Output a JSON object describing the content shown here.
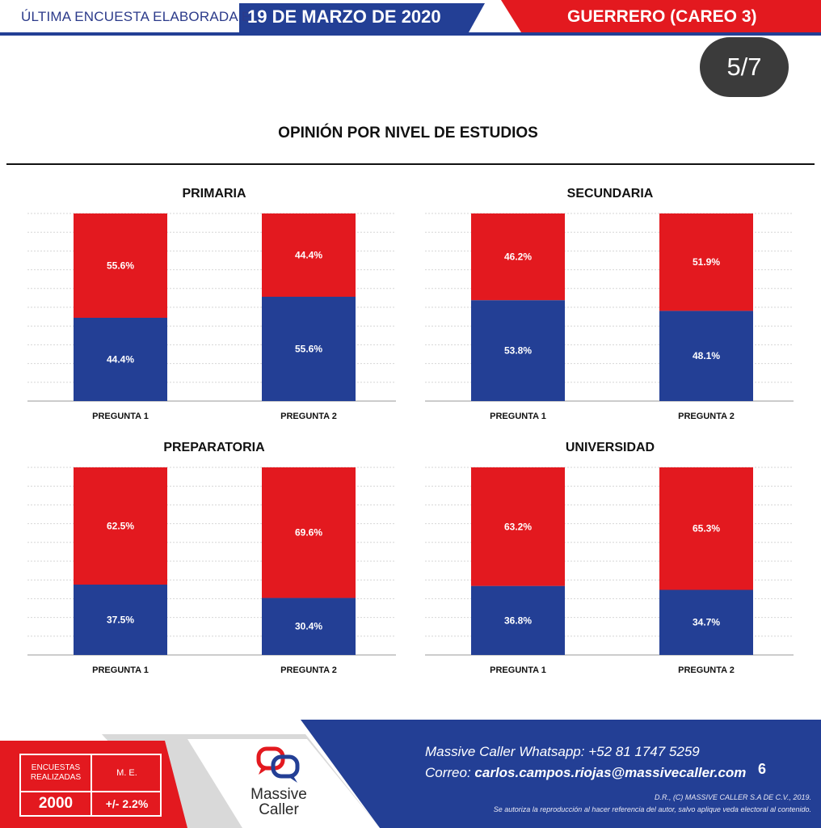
{
  "colors": {
    "red": "#e3191f",
    "blue": "#233f95",
    "gray": "#3b3b3b"
  },
  "header": {
    "prefix": "ÚLTIMA ENCUESTA ELABORADA EL",
    "date": "19 DE MARZO DE 2020",
    "region": "GUERRERO (CAREO 3)"
  },
  "page_badge": "5/7",
  "title": "OPINIÓN POR NIVEL DE ESTUDIOS",
  "chart_data": [
    {
      "type": "bar",
      "stacked": true,
      "title": "PRIMARIA",
      "categories": [
        "PREGUNTA 1",
        "PREGUNTA 2"
      ],
      "series": [
        {
          "color": "#233f95",
          "values": [
            44.4,
            55.6
          ],
          "labels": [
            "44.4%",
            "55.6%"
          ]
        },
        {
          "color": "#e3191f",
          "values": [
            55.6,
            44.4
          ],
          "labels": [
            "55.6%",
            "44.4%"
          ]
        }
      ],
      "ylim": [
        0,
        100
      ]
    },
    {
      "type": "bar",
      "stacked": true,
      "title": "SECUNDARIA",
      "categories": [
        "PREGUNTA 1",
        "PREGUNTA 2"
      ],
      "series": [
        {
          "color": "#233f95",
          "values": [
            53.8,
            48.1
          ],
          "labels": [
            "53.8%",
            "48.1%"
          ]
        },
        {
          "color": "#e3191f",
          "values": [
            46.2,
            51.9
          ],
          "labels": [
            "46.2%",
            "51.9%"
          ]
        }
      ],
      "ylim": [
        0,
        100
      ]
    },
    {
      "type": "bar",
      "stacked": true,
      "title": "PREPARATORIA",
      "categories": [
        "PREGUNTA 1",
        "PREGUNTA 2"
      ],
      "series": [
        {
          "color": "#233f95",
          "values": [
            37.5,
            30.4
          ],
          "labels": [
            "37.5%",
            "30.4%"
          ]
        },
        {
          "color": "#e3191f",
          "values": [
            62.5,
            69.6
          ],
          "labels": [
            "62.5%",
            "69.6%"
          ]
        }
      ],
      "ylim": [
        0,
        100
      ]
    },
    {
      "type": "bar",
      "stacked": true,
      "title": "UNIVERSIDAD",
      "categories": [
        "PREGUNTA 1",
        "PREGUNTA 2"
      ],
      "series": [
        {
          "color": "#233f95",
          "values": [
            36.8,
            34.7
          ],
          "labels": [
            "36.8%",
            "34.7%"
          ]
        },
        {
          "color": "#e3191f",
          "values": [
            63.2,
            65.3
          ],
          "labels": [
            "63.2%",
            "65.3%"
          ]
        }
      ],
      "ylim": [
        0,
        100
      ]
    }
  ],
  "footer": {
    "stats": {
      "surveys_label": "ENCUESTAS REALIZADAS",
      "surveys_value": "2000",
      "margin_label": "M. E.",
      "margin_value": "+/- 2.2%"
    },
    "logo": {
      "icon": "speech-bubbles-icon",
      "line1": "Massive",
      "line2": "Caller"
    },
    "whatsapp_label": "Massive Caller Whatsapp:",
    "whatsapp_number": "+52 81 1747 5259",
    "email_label": "Correo:",
    "email": "carlos.campos.riojas@massivecaller.com",
    "page_number": "6",
    "legal_1": "D.R., (C) MASSIVE CALLER S.A DE C.V., 2019.",
    "legal_2": "Se autoriza la reproducción al hacer referencia del autor, salvo aplique veda electoral al contenido."
  }
}
